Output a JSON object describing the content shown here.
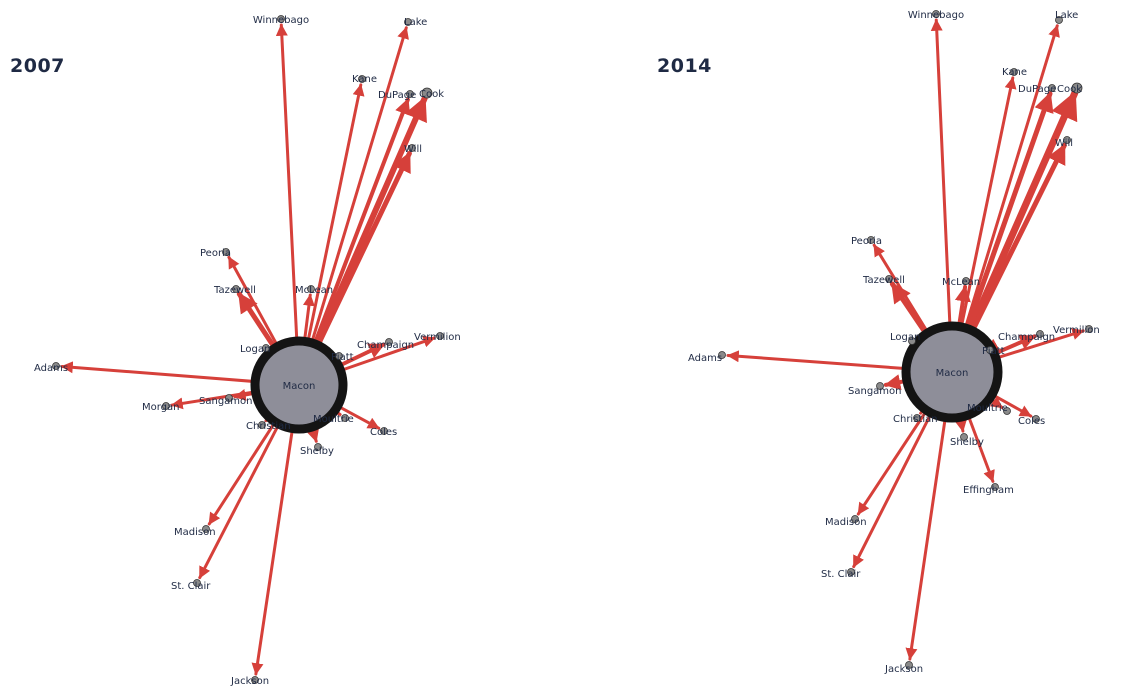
{
  "colors": {
    "edge": "#d6403a",
    "hub_fill": "#8e8e99",
    "hub_stroke": "#141414",
    "node_fill": "#8a8a8a",
    "label": "#1f2a44"
  },
  "networks": [
    {
      "title": "2007",
      "hub": "Macon",
      "edges": [
        {
          "target": "Winnebago"
        },
        {
          "target": "Lake"
        },
        {
          "target": "Kane"
        },
        {
          "target": "DuPage"
        },
        {
          "target": "Cook"
        },
        {
          "target": "Will"
        },
        {
          "target": "Peoria"
        },
        {
          "target": "Tazewell"
        },
        {
          "target": "McLean"
        },
        {
          "target": "Logan"
        },
        {
          "target": "Piatt"
        },
        {
          "target": "Champaign"
        },
        {
          "target": "Vermilion"
        },
        {
          "target": "Adams"
        },
        {
          "target": "Morgan"
        },
        {
          "target": "Sangamon"
        },
        {
          "target": "Christian"
        },
        {
          "target": "Moultrie"
        },
        {
          "target": "Coles"
        },
        {
          "target": "Shelby"
        },
        {
          "target": "Madison"
        },
        {
          "target": "St. Clair"
        },
        {
          "target": "Jackson"
        }
      ]
    },
    {
      "title": "2014",
      "hub": "Macon",
      "edges": [
        {
          "target": "Winnebago"
        },
        {
          "target": "Lake"
        },
        {
          "target": "Kane"
        },
        {
          "target": "DuPage"
        },
        {
          "target": "Cook"
        },
        {
          "target": "Will"
        },
        {
          "target": "Peoria"
        },
        {
          "target": "Tazewell"
        },
        {
          "target": "McLean"
        },
        {
          "target": "Logan"
        },
        {
          "target": "Piatt"
        },
        {
          "target": "Champaign"
        },
        {
          "target": "Vermilion"
        },
        {
          "target": "Adams"
        },
        {
          "target": "Sangamon"
        },
        {
          "target": "Christian"
        },
        {
          "target": "Moultrie"
        },
        {
          "target": "Coles"
        },
        {
          "target": "Shelby"
        },
        {
          "target": "Effingham"
        },
        {
          "target": "Madison"
        },
        {
          "target": "St. Clair"
        },
        {
          "target": "Jackson"
        }
      ]
    }
  ]
}
